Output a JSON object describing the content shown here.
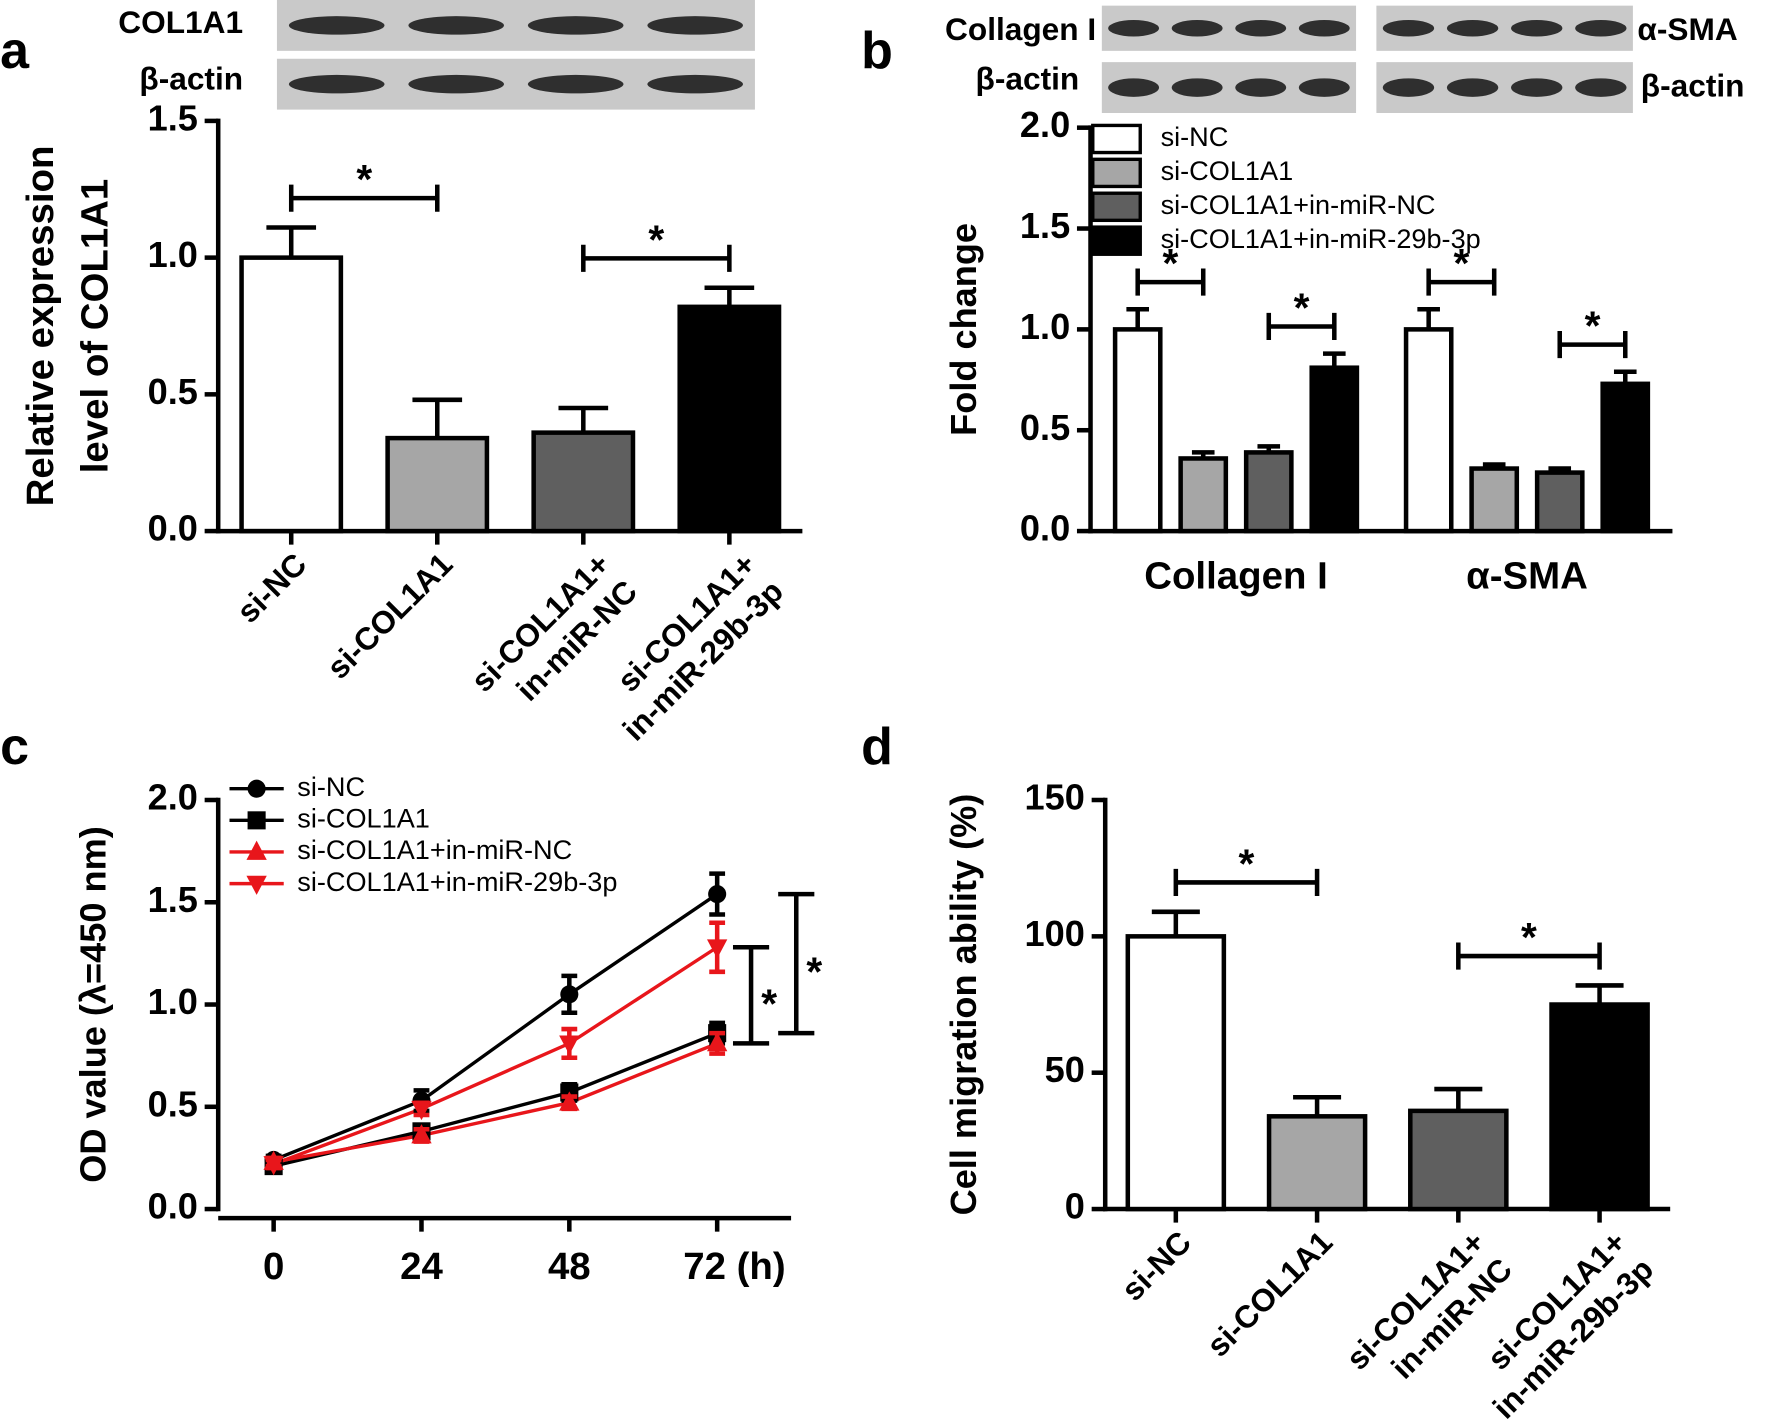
{
  "chart_data": [
    {
      "type": "bar",
      "panel": "a",
      "blot_labels": [
        "COL1A1",
        "β-actin"
      ],
      "ylabel": [
        "Relative expression",
        "level of COL1A1"
      ],
      "categories": [
        [
          "si-NC"
        ],
        [
          "si-COL1A1"
        ],
        [
          "si-COL1A1+",
          "in-miR-NC"
        ],
        [
          "si-COL1A1+",
          "in-miR-29b-3p"
        ]
      ],
      "values": [
        1.0,
        0.34,
        0.36,
        0.82
      ],
      "errors": [
        0.11,
        0.14,
        0.09,
        0.07
      ],
      "colors": [
        "#ffffff",
        "#a6a6a6",
        "#5f5f5f",
        "#000000"
      ],
      "ylim": [
        0,
        1.5
      ],
      "yticks": [
        {
          "value": 0,
          "label": "0.0"
        },
        0.5,
        {
          "value": 1,
          "label": "1.0"
        },
        1.5
      ],
      "significance": [
        {
          "pair": [
            0,
            1
          ],
          "label": "*"
        },
        {
          "pair": [
            2,
            3
          ],
          "label": "*"
        }
      ]
    },
    {
      "type": "bar",
      "panel": "b",
      "blot_labels": [
        "Collagen I",
        "β-actin",
        "α-SMA",
        "β-actin"
      ],
      "ylabel": "Fold change",
      "categories": [
        "Collagen I",
        "α-SMA"
      ],
      "series": [
        {
          "name": "si-NC",
          "color": "#ffffff",
          "values": [
            1.0,
            1.0
          ],
          "errors": [
            0.1,
            0.1
          ]
        },
        {
          "name": "si-COL1A1",
          "color": "#a6a6a6",
          "values": [
            0.36,
            0.31
          ],
          "errors": [
            0.03,
            0.02
          ]
        },
        {
          "name": "si-COL1A1+in-miR-NC",
          "color": "#5f5f5f",
          "values": [
            0.39,
            0.29
          ],
          "errors": [
            0.03,
            0.02
          ]
        },
        {
          "name": "si-COL1A1+in-miR-29b-3p",
          "color": "#000000",
          "values": [
            0.81,
            0.73
          ],
          "errors": [
            0.07,
            0.06
          ]
        }
      ],
      "legend": "upper left",
      "ylim": [
        0,
        2
      ],
      "yticks": [
        {
          "value": 0,
          "label": "0.0"
        },
        0.5,
        {
          "value": 1,
          "label": "1.0"
        },
        1.5,
        {
          "value": 2,
          "label": "2.0"
        }
      ],
      "significance": [
        {
          "category": 0,
          "pair": [
            0,
            1
          ],
          "label": "*"
        },
        {
          "category": 0,
          "pair": [
            2,
            3
          ],
          "label": "*"
        },
        {
          "category": 1,
          "pair": [
            0,
            1
          ],
          "label": "*"
        },
        {
          "category": 1,
          "pair": [
            2,
            3
          ],
          "label": "*"
        }
      ]
    },
    {
      "type": "line",
      "panel": "c",
      "ylabel": "OD value (λ=450 nm)",
      "x": [
        0,
        24,
        48,
        72
      ],
      "xlim": [
        -9,
        84
      ],
      "xticks": [
        0,
        24,
        48,
        {
          "value": 72,
          "label": "72 (h)"
        }
      ],
      "series": [
        {
          "name": "si-NC",
          "color": "#000000",
          "marker": "circle",
          "values": [
            0.24,
            0.53,
            1.05,
            1.54
          ],
          "errors": [
            0.02,
            0.05,
            0.09,
            0.1
          ]
        },
        {
          "name": "si-COL1A1",
          "color": "#000000",
          "marker": "square",
          "values": [
            0.21,
            0.38,
            0.57,
            0.86
          ],
          "errors": [
            0.02,
            0.03,
            0.04,
            0.05
          ]
        },
        {
          "name": "si-COL1A1+in-miR-NC",
          "color": "#e8161b",
          "marker": "triangle-up",
          "values": [
            0.23,
            0.36,
            0.52,
            0.81
          ],
          "errors": [
            0.02,
            0.03,
            0.03,
            0.05
          ]
        },
        {
          "name": "si-COL1A1+in-miR-29b-3p",
          "color": "#e8161b",
          "marker": "triangle-down",
          "values": [
            0.22,
            0.49,
            0.81,
            1.28
          ],
          "errors": [
            0.02,
            0.03,
            0.07,
            0.12
          ]
        }
      ],
      "legend": "upper left",
      "ylim": [
        0,
        2
      ],
      "yticks": [
        {
          "value": 0,
          "label": "0.0"
        },
        0.5,
        {
          "value": 1,
          "label": "1.0"
        },
        1.5,
        {
          "value": 2,
          "label": "2.0"
        }
      ],
      "significance": [
        {
          "pair": [
            2,
            3
          ],
          "label": "*"
        },
        {
          "pair": [
            0,
            1
          ],
          "label": "*"
        }
      ]
    },
    {
      "type": "bar",
      "panel": "d",
      "ylabel": "Cell migration ability (%)",
      "categories": [
        [
          "si-NC"
        ],
        [
          "si-COL1A1"
        ],
        [
          "si-COL1A1+",
          "in-miR-NC"
        ],
        [
          "si-COL1A1+",
          "in-miR-29b-3p"
        ]
      ],
      "values": [
        100,
        34,
        36,
        75
      ],
      "errors": [
        9,
        7,
        8,
        7
      ],
      "colors": [
        "#ffffff",
        "#a6a6a6",
        "#5f5f5f",
        "#000000"
      ],
      "ylim": [
        0,
        150
      ],
      "yticks": [
        0,
        50,
        100,
        150
      ],
      "significance": [
        {
          "pair": [
            0,
            1
          ],
          "label": "*"
        },
        {
          "pair": [
            2,
            3
          ],
          "label": "*"
        }
      ]
    }
  ]
}
